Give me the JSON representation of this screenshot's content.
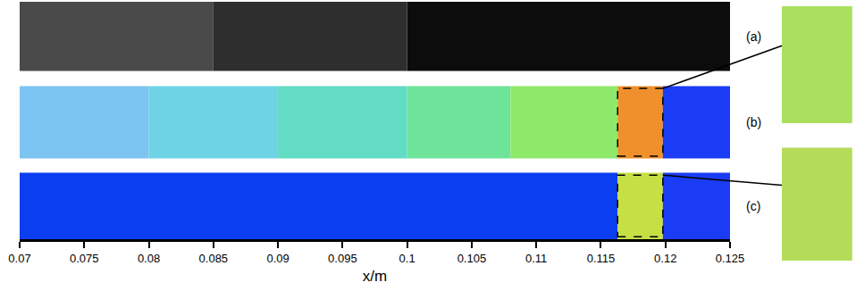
{
  "chart_data": {
    "type": "field_panels",
    "x_label": "x/m",
    "xlim": [
      0.07,
      0.125
    ],
    "xticks": [
      0.07,
      0.075,
      0.08,
      0.085,
      0.09,
      0.095,
      0.1,
      0.105,
      0.11,
      0.115,
      0.12,
      0.125
    ],
    "zoom": [
      0.1163,
      0.1198
    ],
    "panels": [
      {
        "label": "(a)",
        "bands": [
          {
            "x": [
              0.07,
              0.085
            ],
            "color": "#4a4a4a"
          },
          {
            "x": [
              0.085,
              0.1
            ],
            "color": "#2e2e2e"
          },
          {
            "x": [
              0.1,
              0.125
            ],
            "color": "#0c0c0c"
          }
        ]
      },
      {
        "label": "(b)",
        "bands": [
          {
            "x": [
              0.07,
              0.08
            ],
            "color": "#7cc4f2"
          },
          {
            "x": [
              0.08,
              0.09
            ],
            "color": "#6fd3e6"
          },
          {
            "x": [
              0.09,
              0.1
            ],
            "color": "#62dcc4"
          },
          {
            "x": [
              0.1,
              0.108
            ],
            "color": "#6ee39a"
          },
          {
            "x": [
              0.108,
              0.1163
            ],
            "color": "#8ee86a"
          },
          {
            "x": [
              0.1163,
              0.1198
            ],
            "color": "#f0902c"
          },
          {
            "x": [
              0.1198,
              0.125
            ],
            "color": "#1a3cf5"
          }
        ],
        "inset": {
          "color": "#a9e05e"
        }
      },
      {
        "label": "(c)",
        "bands": [
          {
            "x": [
              0.07,
              0.1163
            ],
            "color": "#0a3ef0"
          },
          {
            "x": [
              0.1163,
              0.1198
            ],
            "color": "#c6e044"
          },
          {
            "x": [
              0.1198,
              0.125
            ],
            "color": "#1a3cf5"
          }
        ],
        "inset": {
          "color": "#b4dc58"
        }
      }
    ]
  }
}
